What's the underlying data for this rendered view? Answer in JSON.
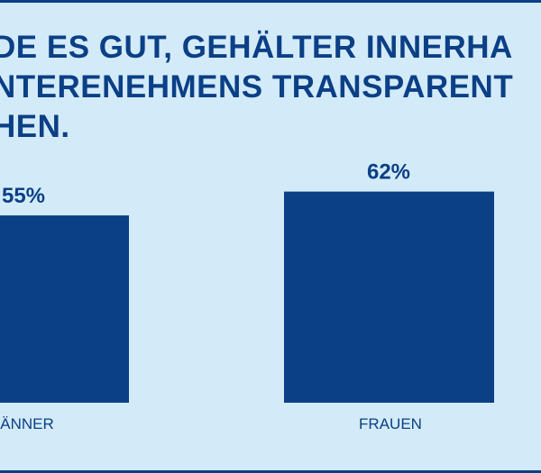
{
  "title_lines": [
    "DE ES GUT, GEHÄLTER INNERHA",
    "NTERENEHMENS TRANSPARENT",
    "HEN."
  ],
  "colors": {
    "background": "#d3ebf8",
    "bar": "#0b3f86",
    "text": "#0b3f86"
  },
  "chart_data": {
    "type": "bar",
    "categories": [
      "ÄNNER",
      "FRAUEN"
    ],
    "values": [
      55,
      62
    ],
    "value_labels": [
      "55%",
      "62%"
    ],
    "ylim": [
      0,
      100
    ],
    "grid": false,
    "legend": "none"
  }
}
